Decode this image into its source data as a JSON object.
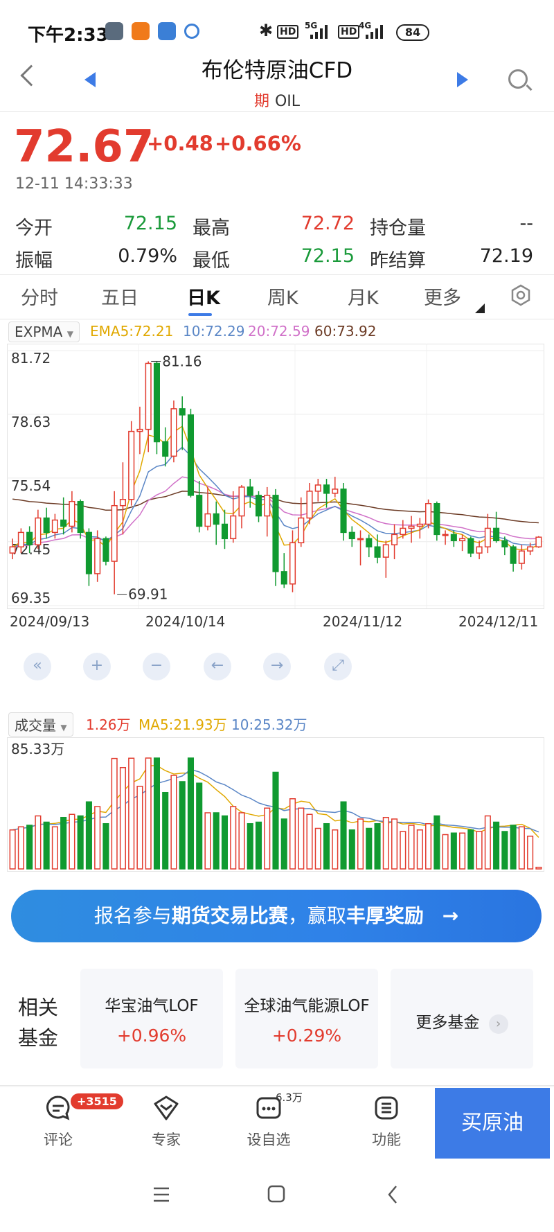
{
  "status": {
    "time": "下午2:33",
    "battery": "84",
    "net1": "5G",
    "net2": "4G",
    "hd": "HD"
  },
  "header": {
    "title": "布伦特原油CFD",
    "type_tag": "期",
    "code": "OIL"
  },
  "quote": {
    "price": "72.67",
    "change": "+0.48",
    "change_pct": "+0.66%",
    "time": "12-11 14:33:33",
    "stats": [
      {
        "label": "今开",
        "value": "72.15",
        "color": "green"
      },
      {
        "label": "最高",
        "value": "72.72",
        "color": "red"
      },
      {
        "label": "持仓量",
        "value": "--",
        "color": "dark"
      },
      {
        "label": "振幅",
        "value": "0.79%",
        "color": "dark"
      },
      {
        "label": "最低",
        "value": "72.15",
        "color": "green"
      },
      {
        "label": "昨结算",
        "value": "72.19",
        "color": "dark"
      }
    ]
  },
  "tabs": [
    "分时",
    "五日",
    "日K",
    "周K",
    "月K",
    "更多"
  ],
  "active_tab": "日K",
  "indicator": {
    "name": "EXPMA",
    "ema5": "EMA5:72.21",
    "ema10": "10:72.29",
    "ema20": "20:72.59",
    "ema60": "60:73.92"
  },
  "volume_indicator": {
    "name": "成交量",
    "current": "1.26万",
    "ma5": "MA5:21.93万",
    "ma10": "10:25.32万",
    "max_label": "85.33万"
  },
  "colors": {
    "up": "#e23b2e",
    "down": "#109a30",
    "ema5": "#e0a800",
    "ema10": "#5a86c6",
    "ema20": "#d070c8",
    "ema60": "#6b3a24",
    "accent": "#3d7be6"
  },
  "chart_data": {
    "type": "candlestick",
    "y_ticks": [
      "81.72",
      "78.63",
      "75.54",
      "72.45",
      "69.35"
    ],
    "ylim": [
      69.35,
      81.72
    ],
    "x_labels": [
      "2024/09/13",
      "2024/10/14",
      "2024/11/12",
      "2024/12/11"
    ],
    "high_annotation": "81.16",
    "low_annotation": "69.91",
    "candles": [
      [
        71.9,
        72.2,
        72.6,
        71.6
      ],
      [
        72.2,
        72.9,
        73.1,
        71.9
      ],
      [
        72.9,
        72.3,
        73.2,
        71.9
      ],
      [
        72.3,
        73.6,
        74.0,
        72.1
      ],
      [
        73.6,
        72.9,
        74.1,
        72.6
      ],
      [
        72.9,
        73.5,
        73.8,
        72.6
      ],
      [
        73.5,
        73.2,
        74.6,
        72.8
      ],
      [
        73.2,
        74.4,
        74.9,
        72.9
      ],
      [
        74.4,
        72.9,
        74.5,
        72.6
      ],
      [
        72.9,
        70.9,
        73.1,
        70.3
      ],
      [
        70.9,
        72.6,
        73.0,
        70.5
      ],
      [
        72.6,
        71.5,
        72.7,
        71.3
      ],
      [
        71.5,
        74.2,
        74.9,
        69.9
      ],
      [
        74.2,
        74.5,
        76.3,
        72.8
      ],
      [
        74.5,
        77.8,
        78.3,
        74.2
      ],
      [
        77.8,
        77.9,
        79.0,
        76.7
      ],
      [
        77.9,
        81.1,
        81.2,
        76.8
      ],
      [
        81.1,
        77.3,
        81.2,
        76.7
      ],
      [
        77.3,
        76.6,
        78.0,
        76.1
      ],
      [
        76.6,
        78.9,
        79.3,
        76.3
      ],
      [
        78.9,
        78.6,
        79.5,
        76.9
      ],
      [
        78.6,
        74.7,
        78.9,
        74.6
      ],
      [
        74.7,
        73.2,
        75.4,
        72.9
      ],
      [
        73.2,
        73.8,
        75.1,
        73.0
      ],
      [
        73.8,
        73.3,
        74.4,
        72.3
      ],
      [
        73.3,
        72.6,
        74.0,
        72.1
      ],
      [
        72.6,
        73.7,
        74.9,
        72.4
      ],
      [
        73.7,
        75.1,
        75.2,
        73.1
      ],
      [
        75.1,
        74.7,
        75.5,
        74.1
      ],
      [
        74.7,
        73.7,
        74.9,
        73.4
      ],
      [
        73.7,
        74.7,
        75.1,
        72.7
      ],
      [
        74.7,
        71.0,
        75.0,
        70.3
      ],
      [
        71.0,
        70.4,
        71.9,
        70.2
      ],
      [
        70.4,
        72.4,
        73.0,
        70.0
      ],
      [
        72.4,
        73.6,
        74.6,
        72.2
      ],
      [
        73.6,
        74.9,
        75.3,
        73.3
      ],
      [
        74.9,
        75.2,
        75.5,
        74.4
      ],
      [
        75.2,
        74.8,
        75.5,
        74.1
      ],
      [
        74.8,
        75.0,
        75.6,
        74.6
      ],
      [
        75.0,
        72.9,
        75.3,
        72.5
      ],
      [
        72.9,
        72.6,
        73.2,
        72.2
      ],
      [
        72.6,
        72.6,
        73.0,
        71.3
      ],
      [
        72.6,
        72.2,
        72.8,
        71.7
      ],
      [
        72.2,
        71.7,
        72.8,
        71.4
      ],
      [
        71.7,
        72.3,
        72.5,
        70.7
      ],
      [
        72.3,
        72.8,
        73.3,
        71.6
      ],
      [
        72.8,
        73.1,
        73.5,
        72.6
      ],
      [
        73.1,
        73.2,
        73.7,
        72.4
      ],
      [
        73.2,
        73.3,
        73.6,
        72.6
      ],
      [
        73.3,
        74.3,
        74.5,
        73.1
      ],
      [
        74.3,
        72.8,
        74.4,
        72.5
      ],
      [
        72.8,
        72.8,
        73.0,
        72.3
      ],
      [
        72.8,
        72.5,
        73.0,
        72.2
      ],
      [
        72.5,
        72.6,
        72.8,
        72.0
      ],
      [
        72.6,
        71.9,
        72.7,
        71.7
      ],
      [
        71.9,
        72.2,
        72.5,
        71.6
      ],
      [
        72.2,
        73.1,
        73.8,
        71.9
      ],
      [
        73.1,
        72.5,
        73.9,
        72.4
      ],
      [
        72.5,
        72.2,
        72.7,
        71.8
      ],
      [
        72.2,
        71.4,
        72.3,
        71.0
      ],
      [
        71.4,
        72.0,
        72.3,
        71.1
      ],
      [
        72.0,
        72.2,
        72.4,
        71.8
      ],
      [
        72.2,
        72.67,
        72.72,
        72.15
      ]
    ],
    "volume_ylim": [
      0,
      85.33
    ]
  },
  "controls": [
    "«",
    "+",
    "−",
    "←",
    "→",
    "⤢"
  ],
  "banner": {
    "prefix": "报名参与",
    "bold1": "期货交易比赛",
    "mid": "，赢取",
    "bold2": "丰厚奖励",
    "arrow": "→"
  },
  "funds": {
    "label": "相关基金",
    "items": [
      {
        "name": "华宝油气LOF",
        "change": "+0.96%"
      },
      {
        "name": "全球油气能源LOF",
        "change": "+0.29%"
      }
    ],
    "more": "更多基金"
  },
  "bottom": {
    "items": [
      {
        "label": "评论",
        "icon": "comment-icon"
      },
      {
        "label": "专家",
        "icon": "expert-icon"
      },
      {
        "label": "设自选",
        "icon": "watchlist-icon"
      },
      {
        "label": "功能",
        "icon": "function-icon"
      }
    ],
    "badge": "+3515",
    "watch_count": "6.3万",
    "buy": "买原油"
  }
}
